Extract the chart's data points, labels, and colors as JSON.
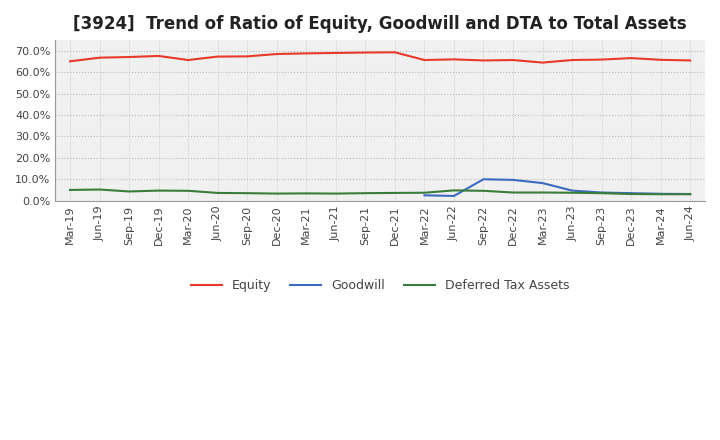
{
  "title": "[3924]  Trend of Ratio of Equity, Goodwill and DTA to Total Assets",
  "labels": [
    "Mar-19",
    "Jun-19",
    "Sep-19",
    "Dec-19",
    "Mar-20",
    "Jun-20",
    "Sep-20",
    "Dec-20",
    "Mar-21",
    "Jun-21",
    "Sep-21",
    "Dec-21",
    "Mar-22",
    "Jun-22",
    "Sep-22",
    "Dec-22",
    "Mar-23",
    "Jun-23",
    "Sep-23",
    "Dec-23",
    "Mar-24",
    "Jun-24"
  ],
  "equity": [
    0.651,
    0.668,
    0.671,
    0.676,
    0.657,
    0.673,
    0.674,
    0.685,
    0.688,
    0.69,
    0.692,
    0.693,
    0.657,
    0.66,
    0.655,
    0.657,
    0.645,
    0.657,
    0.659,
    0.666,
    0.658,
    0.655
  ],
  "goodwill": [
    null,
    null,
    null,
    null,
    null,
    null,
    null,
    null,
    null,
    null,
    null,
    null,
    0.025,
    0.022,
    0.1,
    0.097,
    0.082,
    0.047,
    0.038,
    0.035,
    0.032,
    0.031
  ],
  "dta": [
    0.05,
    0.052,
    0.043,
    0.047,
    0.046,
    0.036,
    0.035,
    0.033,
    0.034,
    0.033,
    0.035,
    0.036,
    0.037,
    0.048,
    0.046,
    0.038,
    0.038,
    0.037,
    0.035,
    0.031,
    0.03,
    0.03
  ],
  "equity_color": "#e8392a",
  "goodwill_color": "#3c6abf",
  "dta_color": "#3a7d3a",
  "bg_color": "#ffffff",
  "plot_bg_color": "#f0f0f0",
  "grid_color": "#bbbbbb",
  "ylim": [
    0.0,
    0.75
  ],
  "yticks": [
    0.0,
    0.1,
    0.2,
    0.3,
    0.4,
    0.5,
    0.6,
    0.7
  ],
  "legend_labels": [
    "Equity",
    "Goodwill",
    "Deferred Tax Assets"
  ],
  "title_fontsize": 12,
  "tick_fontsize": 8,
  "legend_fontsize": 9
}
